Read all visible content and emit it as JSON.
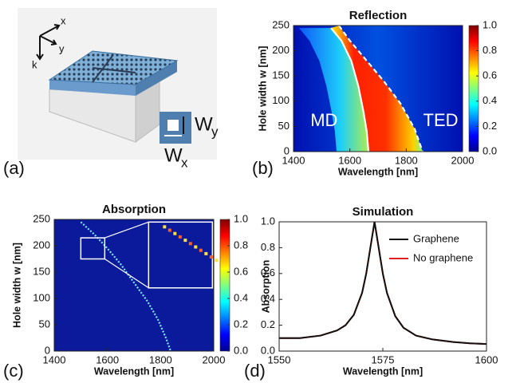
{
  "panel_a": {
    "label": "(a)",
    "axis_x": "x",
    "axis_y": "y",
    "axis_k": "k",
    "wy": {
      "main": "W",
      "sub": "y"
    },
    "wx": {
      "main": "W",
      "sub": "x"
    }
  },
  "chart_data": [
    {
      "type": "heatmap",
      "panel_label": "(b)",
      "title": "Reflection",
      "x_label": "Wavelength [nm]",
      "y_label": "Hole width w [nm]",
      "xlim": [
        1400,
        2000
      ],
      "xticks": [
        1400,
        1600,
        1800,
        2000
      ],
      "ylim": [
        0,
        250
      ],
      "yticks": [
        0,
        50,
        100,
        150,
        200,
        250
      ],
      "clim": [
        0,
        1
      ],
      "cticks": [
        {
          "value": 0,
          "label": "0.0"
        },
        0.2,
        0.4,
        0.6,
        0.8,
        {
          "value": 1,
          "label": "1.0"
        }
      ],
      "annotations": [
        "MD",
        "TED"
      ],
      "series": [
        {
          "color": "#ffffff",
          "dash": false,
          "x": [
            1533,
            1570,
            1605,
            1630,
            1648,
            1660,
            1666
          ],
          "values": [
            245,
            220,
            180,
            130,
            80,
            40,
            0
          ]
        },
        {
          "color": "#ffffff",
          "dash": true,
          "x": [
            1561,
            1600,
            1660,
            1720,
            1780,
            1830,
            1858
          ],
          "values": [
            250,
            220,
            180,
            140,
            95,
            45,
            0
          ]
        }
      ]
    },
    {
      "type": "heatmap",
      "panel_label": "(c)",
      "title": "Absorption",
      "x_label": "Wavelength [nm]",
      "y_label": "Hole width w [nm]",
      "xlim": [
        1400,
        2000
      ],
      "xticks": [
        1400,
        1600,
        1800,
        2000
      ],
      "ylim": [
        0,
        250
      ],
      "yticks": [
        0,
        50,
        100,
        150,
        200,
        250
      ],
      "clim": [
        0,
        1
      ],
      "cticks": [
        {
          "value": 0,
          "label": "0.0"
        },
        0.2,
        0.4,
        0.6,
        0.8,
        {
          "value": 1,
          "label": "1.0"
        }
      ],
      "series": [
        {
          "color": "#7fe8ff",
          "dash": true,
          "x": [
            1500,
            1550,
            1600,
            1650,
            1700,
            1750,
            1790,
            1820,
            1838
          ],
          "values": [
            245,
            222,
            195,
            165,
            130,
            95,
            60,
            25,
            0
          ]
        }
      ]
    },
    {
      "type": "line",
      "panel_label": "(d)",
      "title": "Simulation",
      "x_label": "Wavelength [nm]",
      "y_label": "Absorption",
      "xlim": [
        1550,
        1600
      ],
      "xticks": [
        1550,
        1575,
        1600
      ],
      "ylim": [
        0,
        1
      ],
      "yticks": [
        {
          "value": 0,
          "label": "0.0"
        },
        0.2,
        0.4,
        0.6,
        0.8,
        {
          "value": 1,
          "label": "1.0"
        }
      ],
      "x": [
        1550,
        1555,
        1560,
        1564,
        1566,
        1568,
        1570,
        1571,
        1572,
        1573,
        1574,
        1575,
        1576,
        1578,
        1580,
        1583,
        1587,
        1592,
        1596,
        1600
      ],
      "series": [
        {
          "name": "No graphene",
          "color": "#e02020",
          "values": [
            0.1,
            0.1,
            0.12,
            0.16,
            0.2,
            0.28,
            0.45,
            0.6,
            0.8,
            1.0,
            0.8,
            0.6,
            0.45,
            0.27,
            0.18,
            0.12,
            0.09,
            0.07,
            0.06,
            0.055
          ]
        },
        {
          "name": "Graphene",
          "color": "#111111",
          "values": [
            0.1,
            0.1,
            0.12,
            0.16,
            0.2,
            0.28,
            0.45,
            0.6,
            0.8,
            1.0,
            0.8,
            0.6,
            0.45,
            0.27,
            0.18,
            0.12,
            0.09,
            0.07,
            0.06,
            0.055
          ]
        }
      ]
    }
  ]
}
